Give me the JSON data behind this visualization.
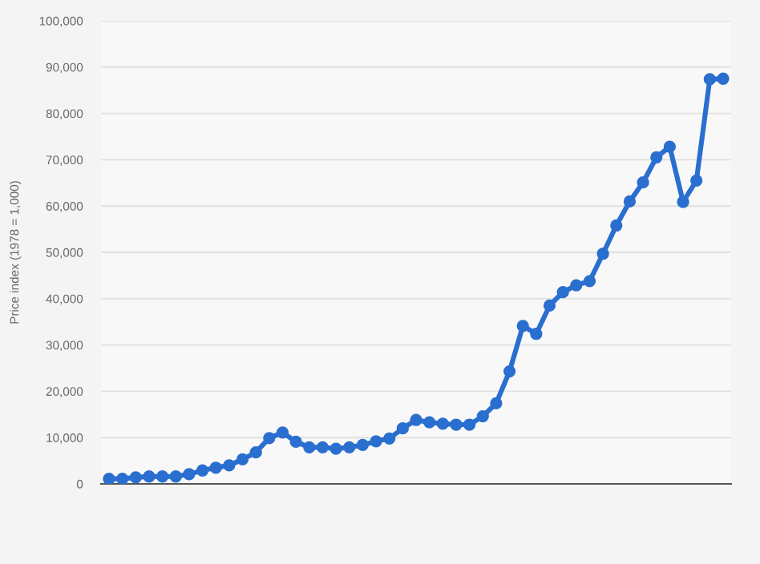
{
  "chart_data": {
    "type": "line",
    "ylabel": "Price index (1978 = 1,000)",
    "categories": [
      null,
      null,
      null,
      null,
      null,
      null,
      null,
      null,
      null,
      null,
      null,
      null,
      null,
      null,
      null,
      null,
      null,
      null,
      null,
      null,
      null,
      null,
      null,
      null,
      null,
      null,
      null,
      null,
      null,
      null,
      null,
      null,
      null,
      null,
      null,
      null,
      null,
      null,
      null,
      null,
      null,
      null,
      null,
      null,
      null,
      null,
      null
    ],
    "series": [
      {
        "color": "#2a6fcf",
        "values": [
          1100,
          1100,
          1400,
          1600,
          1600,
          1600,
          2100,
          2900,
          3500,
          4000,
          5300,
          6800,
          9900,
          11100,
          9100,
          7900,
          7900,
          7600,
          7900,
          8400,
          9200,
          9800,
          12000,
          13800,
          13300,
          13000,
          12800,
          12800,
          14600,
          17400,
          24300,
          34100,
          32400,
          38500,
          41400,
          42900,
          43800,
          49700,
          55800,
          61000,
          65100,
          70500,
          72800,
          60900,
          65500,
          87400,
          87500
        ]
      }
    ],
    "ylim": [
      0,
      100000
    ],
    "yticks": [
      {
        "value": 0,
        "label": "0"
      },
      {
        "value": 10000,
        "label": "10,000"
      },
      {
        "value": 20000,
        "label": "20,000"
      },
      {
        "value": 30000,
        "label": "30,000"
      },
      {
        "value": 40000,
        "label": "40,000"
      },
      {
        "value": 50000,
        "label": "50,000"
      },
      {
        "value": 60000,
        "label": "60,000"
      },
      {
        "value": 70000,
        "label": "70,000"
      },
      {
        "value": 80000,
        "label": "80,000"
      },
      {
        "value": 90000,
        "label": "90,000"
      },
      {
        "value": 100000,
        "label": "100,000"
      }
    ],
    "grid": "y",
    "marker": "circle",
    "line_style": "solid",
    "tick_labels": "y"
  }
}
